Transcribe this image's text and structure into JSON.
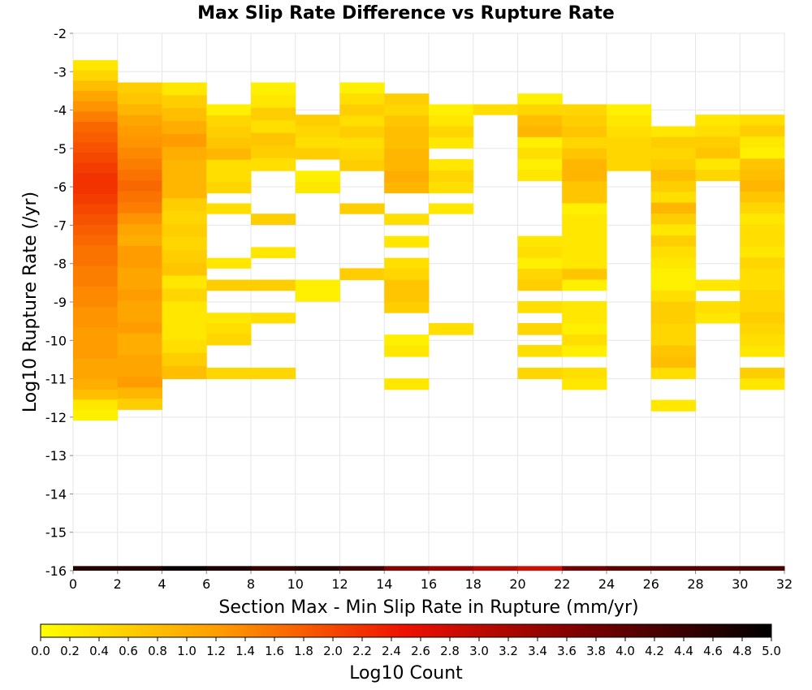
{
  "chart_data": {
    "type": "heatmap",
    "title": "Max Slip Rate Difference vs Rupture Rate",
    "xlabel": "Section Max - Min Slip Rate in Rupture (mm/yr)",
    "ylabel": "Log10 Rupture Rate (/yr)",
    "colorbar_label": "Log10 Count",
    "xlim": [
      0,
      32
    ],
    "ylim": [
      -16,
      -2
    ],
    "x_ticks": [
      "0",
      "2",
      "4",
      "6",
      "8",
      "10",
      "12",
      "14",
      "16",
      "18",
      "20",
      "22",
      "24",
      "26",
      "28",
      "30",
      "32"
    ],
    "y_ticks": [
      "-2",
      "-3",
      "-4",
      "-5",
      "-6",
      "-7",
      "-8",
      "-9",
      "-10",
      "-11",
      "-12",
      "-13",
      "-14",
      "-15",
      "-16"
    ],
    "colorbar_ticks": [
      "0.0",
      "0.2",
      "0.4",
      "0.6",
      "0.8",
      "1.0",
      "1.2",
      "1.4",
      "1.6",
      "1.8",
      "2.0",
      "2.2",
      "2.4",
      "2.6",
      "2.8",
      "3.0",
      "3.2",
      "3.4",
      "3.6",
      "3.8",
      "4.0",
      "4.2",
      "4.4",
      "4.6",
      "4.8",
      "5.0"
    ],
    "zlim": [
      0,
      5
    ],
    "colormap": [
      "#ffff00",
      "#ff9900",
      "#ee1100",
      "#770000",
      "#000000"
    ],
    "grid": true,
    "x_bin_width": 2,
    "y_bin_width": 0.2875,
    "bins": [
      {
        "x": 0,
        "y_from": -2.7,
        "y_to": -12.08,
        "values": [
          0.3,
          0.5,
          0.8,
          1.1,
          1.3,
          1.5,
          1.7,
          1.8,
          1.9,
          2.0,
          2.1,
          2.2,
          2.2,
          2.1,
          2.0,
          1.9,
          1.8,
          1.7,
          1.6,
          1.6,
          1.5,
          1.5,
          1.4,
          1.4,
          1.3,
          1.3,
          1.2,
          1.2,
          1.2,
          1.1,
          1.1,
          1.0,
          0.8,
          0.3,
          0.2
        ]
      },
      {
        "x": 2,
        "y_from": -3.28,
        "y_to": -11.8,
        "values": [
          0.6,
          0.7,
          0.9,
          1.1,
          1.2,
          1.3,
          1.4,
          1.5,
          1.6,
          1.7,
          1.6,
          1.5,
          1.3,
          1.1,
          1.0,
          1.2,
          1.2,
          1.1,
          1.1,
          1.2,
          1.1,
          1.1,
          1.2,
          1.0,
          1.0,
          1.1,
          1.1,
          1.2,
          0.9,
          0.6
        ]
      },
      {
        "x": 4,
        "y_from": -3.28,
        "y_to": -11.0,
        "values": [
          0.3,
          0.6,
          0.8,
          1.0,
          1.2,
          1.0,
          0.9,
          0.9,
          0.9,
          0.6,
          0.5,
          0.6,
          0.5,
          0.6,
          0.7,
          0.3,
          0.5,
          0.3,
          0.3,
          0.3,
          0.4,
          0.6,
          0.8
        ]
      },
      {
        "x": 6,
        "y_from": -3.85,
        "y_to": -6.16,
        "values": [
          0.2,
          0.5,
          0.6,
          0.7,
          0.9,
          0.4,
          0.4,
          0.5
        ]
      },
      {
        "x": 6,
        "y_from": -6.43,
        "y_to": -6.7,
        "values": [
          0.4
        ]
      },
      {
        "x": 6,
        "y_from": -7.85,
        "y_to": -8.12,
        "values": [
          0.3
        ]
      },
      {
        "x": 6,
        "y_from": -8.42,
        "y_to": -8.7,
        "values": [
          0.6
        ]
      },
      {
        "x": 6,
        "y_from": -9.28,
        "y_to": -10.12,
        "values": [
          0.3,
          0.4,
          0.5
        ]
      },
      {
        "x": 6,
        "y_from": -10.71,
        "y_to": -11.0,
        "values": [
          0.5
        ]
      },
      {
        "x": 8,
        "y_from": -3.28,
        "y_to": -5.58,
        "values": [
          0.2,
          0.3,
          0.6,
          0.4,
          0.7,
          0.6,
          0.4
        ]
      },
      {
        "x": 8,
        "y_from": -6.7,
        "y_to": -6.98,
        "values": [
          0.6
        ]
      },
      {
        "x": 8,
        "y_from": -7.57,
        "y_to": -7.85,
        "values": [
          0.3
        ]
      },
      {
        "x": 8,
        "y_from": -8.42,
        "y_to": -8.7,
        "values": [
          0.6
        ]
      },
      {
        "x": 8,
        "y_from": -9.28,
        "y_to": -9.55,
        "values": [
          0.4
        ]
      },
      {
        "x": 8,
        "y_from": -10.71,
        "y_to": -11.0,
        "values": [
          0.5
        ]
      },
      {
        "x": 10,
        "y_from": -4.12,
        "y_to": -5.28,
        "values": [
          0.6,
          0.5,
          0.4,
          0.6
        ]
      },
      {
        "x": 10,
        "y_from": -5.58,
        "y_to": -6.16,
        "values": [
          0.2,
          0.3
        ]
      },
      {
        "x": 10,
        "y_from": -8.42,
        "y_to": -8.98,
        "values": [
          0.2,
          0.2
        ]
      },
      {
        "x": 12,
        "y_from": -3.28,
        "y_to": -5.58,
        "values": [
          0.2,
          0.4,
          0.6,
          0.4,
          0.6,
          0.4,
          0.5,
          0.6
        ]
      },
      {
        "x": 12,
        "y_from": -6.43,
        "y_to": -6.7,
        "values": [
          0.6
        ]
      },
      {
        "x": 12,
        "y_from": -8.12,
        "y_to": -8.42,
        "values": [
          0.6
        ]
      },
      {
        "x": 14,
        "y_from": -3.57,
        "y_to": -6.16,
        "values": [
          0.6,
          0.5,
          0.7,
          0.8,
          0.8,
          0.9,
          0.9,
          1.0,
          0.9
        ]
      },
      {
        "x": 14,
        "y_from": -6.7,
        "y_to": -6.98,
        "values": [
          0.4
        ]
      },
      {
        "x": 14,
        "y_from": -7.28,
        "y_to": -7.57,
        "values": [
          0.3
        ]
      },
      {
        "x": 14,
        "y_from": -7.85,
        "y_to": -9.28,
        "values": [
          0.4,
          0.5,
          0.7,
          0.7,
          0.6
        ]
      },
      {
        "x": 14,
        "y_from": -9.85,
        "y_to": -10.42,
        "values": [
          0.2,
          0.3
        ]
      },
      {
        "x": 14,
        "y_from": -10.99,
        "y_to": -11.28,
        "values": [
          0.3
        ]
      },
      {
        "x": 16,
        "y_from": -3.85,
        "y_to": -4.71,
        "values": [
          0.2,
          0.3,
          0.5
        ]
      },
      {
        "x": 16,
        "y_from": -4.71,
        "y_to": -4.99,
        "values": [
          0.3
        ]
      },
      {
        "x": 16,
        "y_from": -5.28,
        "y_to": -6.16,
        "values": [
          0.3,
          0.5,
          0.4
        ]
      },
      {
        "x": 16,
        "y_from": -6.43,
        "y_to": -6.7,
        "values": [
          0.3
        ]
      },
      {
        "x": 16,
        "y_from": -9.55,
        "y_to": -9.85,
        "values": [
          0.4
        ]
      },
      {
        "x": 18,
        "y_from": -3.85,
        "y_to": -4.12,
        "values": [
          0.4
        ]
      },
      {
        "x": 20,
        "y_from": -3.57,
        "y_to": -5.84,
        "values": [
          0.2,
          0.5,
          0.8,
          0.9,
          0.2,
          0.4,
          0.2,
          0.3
        ]
      },
      {
        "x": 20,
        "y_from": -7.28,
        "y_to": -8.7,
        "values": [
          0.3,
          0.4,
          0.2,
          0.5,
          0.6
        ]
      },
      {
        "x": 20,
        "y_from": -8.98,
        "y_to": -9.28,
        "values": [
          0.4
        ]
      },
      {
        "x": 20,
        "y_from": -9.55,
        "y_to": -9.85,
        "values": [
          0.5
        ]
      },
      {
        "x": 20,
        "y_from": -10.12,
        "y_to": -10.42,
        "values": [
          0.4
        ]
      },
      {
        "x": 20,
        "y_from": -10.71,
        "y_to": -11.0,
        "values": [
          0.5
        ]
      },
      {
        "x": 22,
        "y_from": -3.85,
        "y_to": -6.43,
        "values": [
          0.5,
          0.6,
          0.7,
          0.5,
          0.7,
          0.9,
          0.9,
          0.7,
          0.7
        ]
      },
      {
        "x": 22,
        "y_from": -6.43,
        "y_to": -8.42,
        "values": [
          0.2,
          0.3,
          0.3,
          0.3,
          0.3,
          0.3,
          0.7
        ]
      },
      {
        "x": 22,
        "y_from": -8.42,
        "y_to": -8.7,
        "values": [
          0.2
        ]
      },
      {
        "x": 22,
        "y_from": -8.98,
        "y_to": -10.42,
        "values": [
          0.3,
          0.3,
          0.2,
          0.4,
          0.2
        ]
      },
      {
        "x": 22,
        "y_from": -10.71,
        "y_to": -11.28,
        "values": [
          0.4,
          0.3
        ]
      },
      {
        "x": 24,
        "y_from": -3.85,
        "y_to": -5.58,
        "values": [
          0.2,
          0.3,
          0.4,
          0.5,
          0.5,
          0.5
        ]
      },
      {
        "x": 26,
        "y_from": -4.42,
        "y_to": -6.98,
        "values": [
          0.3,
          0.6,
          0.5,
          0.6,
          0.8,
          0.6,
          0.4,
          0.9,
          0.6
        ]
      },
      {
        "x": 26,
        "y_from": -6.98,
        "y_to": -11.0,
        "values": [
          0.3,
          0.6,
          0.4,
          0.3,
          0.2,
          0.2,
          0.4,
          0.6,
          0.6,
          0.5,
          0.5,
          0.7,
          0.8,
          0.4
        ]
      },
      {
        "x": 26,
        "y_from": -11.55,
        "y_to": -11.84,
        "values": [
          0.3
        ]
      },
      {
        "x": 28,
        "y_from": -4.12,
        "y_to": -5.84,
        "values": [
          0.3,
          0.4,
          0.6,
          0.7,
          0.3,
          0.5
        ]
      },
      {
        "x": 28,
        "y_from": -8.42,
        "y_to": -8.7,
        "values": [
          0.3
        ]
      },
      {
        "x": 28,
        "y_from": -8.98,
        "y_to": -9.28,
        "values": [
          0.4
        ]
      },
      {
        "x": 28,
        "y_from": -9.28,
        "y_to": -9.55,
        "values": [
          0.3
        ]
      },
      {
        "x": 30,
        "y_from": -4.12,
        "y_to": -6.98,
        "values": [
          0.4,
          0.6,
          0.3,
          0.2,
          0.7,
          0.8,
          0.9,
          0.7,
          0.5,
          0.3
        ]
      },
      {
        "x": 30,
        "y_from": -6.98,
        "y_to": -10.42,
        "values": [
          0.4,
          0.4,
          0.3,
          0.5,
          0.4,
          0.4,
          0.5,
          0.5,
          0.6,
          0.5,
          0.4,
          0.3
        ]
      },
      {
        "x": 30,
        "y_from": -10.71,
        "y_to": -11.28,
        "values": [
          0.6,
          0.3
        ]
      }
    ],
    "bottom_row": {
      "y_from": -15.88,
      "y_to": -16.0,
      "values": [
        4.6,
        4.6,
        4.9,
        4.7,
        4.4,
        4.6,
        4.3,
        3.6,
        3.4,
        3.1,
        2.8,
        3.8,
        4.0,
        4.1,
        4.1,
        4.2
      ]
    }
  }
}
